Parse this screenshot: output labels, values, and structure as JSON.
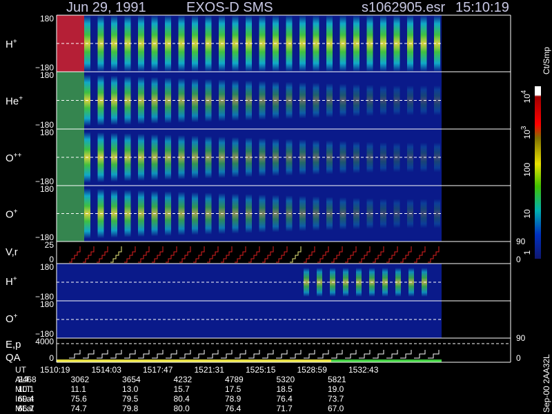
{
  "header": {
    "date": "Jun 29, 1991",
    "instrument": "EXOS-D SMS",
    "file": "s1062905.esr",
    "time": "15:10:19"
  },
  "panels": [
    {
      "label": {
        "base": "H",
        "sup": "+"
      },
      "ticks": [
        "180",
        "−180"
      ]
    },
    {
      "label": {
        "base": "He",
        "sup": "+"
      },
      "ticks": [
        "180",
        "−180"
      ]
    },
    {
      "label": {
        "base": "O",
        "sup": "++"
      },
      "ticks": [
        "180",
        "−180"
      ]
    },
    {
      "label": {
        "base": "O",
        "sup": "+"
      },
      "ticks": [
        "180",
        "−180"
      ]
    },
    {
      "label": {
        "base": "V,r"
      },
      "ticks": [
        "25",
        "0"
      ],
      "right_ticks": [
        "90",
        "0"
      ]
    },
    {
      "label": {
        "base": "H",
        "sup": "+"
      },
      "ticks": [
        "180",
        "−180"
      ]
    },
    {
      "label": {
        "base": "O",
        "sup": "+"
      },
      "ticks": [
        "180",
        "−180"
      ]
    },
    {
      "label": {
        "base": "E,p"
      },
      "label2": "QA",
      "ticks": [
        "4000",
        "0"
      ],
      "right_ticks": [
        "90",
        "0"
      ]
    }
  ],
  "colorbar": {
    "unit": "Ct/Smp",
    "ticks": [
      {
        "base": "10",
        "sup": "4"
      },
      {
        "base": "10",
        "sup": "3"
      },
      {
        "base": "100"
      },
      {
        "base": "10"
      },
      {
        "base": "1"
      }
    ]
  },
  "footer": {
    "rows": [
      {
        "name": "UT",
        "values": [
          "1510:19",
          "1514:03",
          "1517:47",
          "1521:31",
          "1525:15",
          "1528:59",
          "1532:43"
        ]
      },
      {
        "name": "ALT",
        "values": [
          "2468",
          "3062",
          "3654",
          "4232",
          "4789",
          "5320",
          "5821"
        ]
      },
      {
        "name": "MLT",
        "values": [
          "10.1",
          "11.1",
          "13.0",
          "15.7",
          "17.5",
          "18.5",
          "19.0"
        ]
      },
      {
        "name": "InLat",
        "values": [
          "69.4",
          "75.6",
          "79.5",
          "80.4",
          "78.9",
          "76.4",
          "73.7"
        ]
      },
      {
        "name": "MLat",
        "values": [
          "66.7",
          "74.7",
          "79.8",
          "80.0",
          "76.4",
          "71.7",
          "67.0"
        ]
      }
    ]
  },
  "stamp": "Sep-00 2AA32L"
}
